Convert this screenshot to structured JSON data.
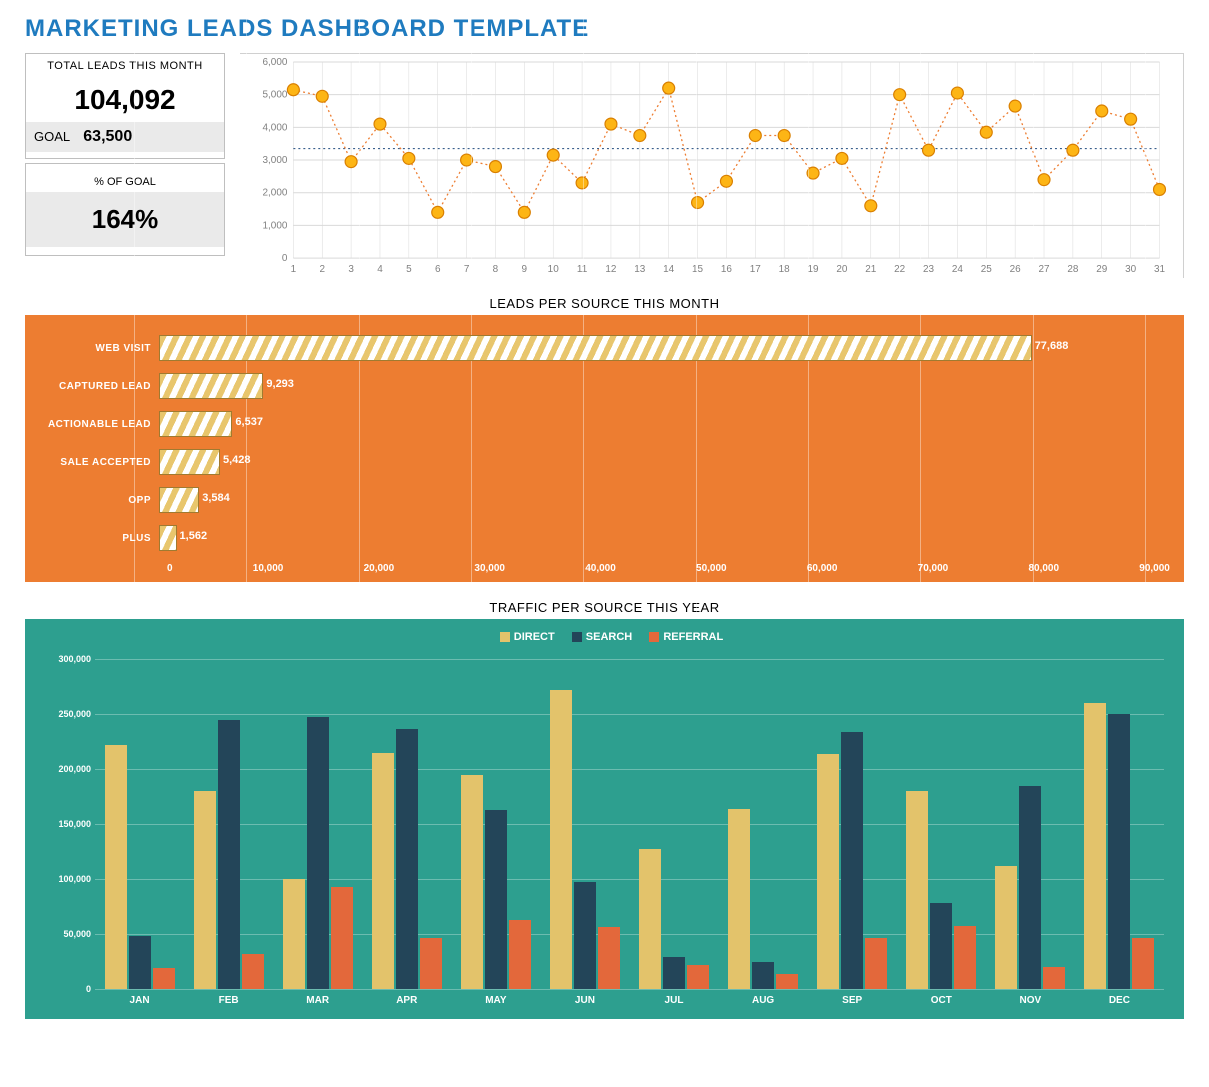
{
  "title": "MARKETING LEADS DASHBOARD TEMPLATE",
  "colors": {
    "title": "#1f7bbf",
    "hbar_panel_bg": "#ed7d31",
    "grouped_panel_bg": "#2d9f8f",
    "direct": "#e3c36b",
    "search": "#234559",
    "referral": "#e3683b",
    "line_marker_fill": "#fdb515",
    "line_marker_stroke": "#d97f00",
    "line_stroke": "#ed7d31",
    "trend_line": "#1f497d"
  },
  "kpi": {
    "total_label": "TOTAL LEADS THIS MONTH",
    "total_value": "104,092",
    "goal_label": "GOAL",
    "goal_value": "63,500",
    "pct_label": "% OF GOAL",
    "pct_value": "164%"
  },
  "line_chart": {
    "type": "line",
    "x_categories": [
      "1",
      "2",
      "3",
      "4",
      "5",
      "6",
      "7",
      "8",
      "9",
      "10",
      "11",
      "12",
      "13",
      "14",
      "15",
      "16",
      "17",
      "18",
      "19",
      "20",
      "21",
      "22",
      "23",
      "24",
      "25",
      "26",
      "27",
      "28",
      "29",
      "30",
      "31"
    ],
    "values": [
      5150,
      4950,
      2950,
      4100,
      3050,
      1400,
      3000,
      2800,
      1400,
      3150,
      2300,
      4100,
      3750,
      5200,
      1700,
      2350,
      3750,
      3750,
      2600,
      3050,
      1600,
      5000,
      3300,
      5050,
      3850,
      4650,
      2400,
      3300,
      4500,
      4250,
      2100
    ],
    "ylim": [
      0,
      6000
    ],
    "ytick_step": 1000,
    "trend_y": 3350,
    "marker_radius": 6,
    "axis_color": "#808080",
    "grid_color": "#d9d9d9",
    "label_fontsize": 10
  },
  "hbar": {
    "title": "LEADS PER SOURCE THIS MONTH",
    "xlim": [
      0,
      90000
    ],
    "xtick_step": 10000,
    "categories": [
      "WEB VISIT",
      "CAPTURED LEAD",
      "ACTIONABLE LEAD",
      "SALE ACCEPTED",
      "OPP",
      "PLUS"
    ],
    "values": [
      77688,
      9293,
      6537,
      5428,
      3584,
      1562
    ],
    "value_labels": [
      "77,688",
      "9,293",
      "6,537",
      "5,428",
      "3,584",
      "1,562"
    ],
    "axis_labels": [
      "0",
      "10,000",
      "20,000",
      "30,000",
      "40,000",
      "50,000",
      "60,000",
      "70,000",
      "80,000",
      "90,000"
    ]
  },
  "grouped": {
    "title": "TRAFFIC PER SOURCE THIS YEAR",
    "legend": {
      "direct": "DIRECT",
      "search": "SEARCH",
      "referral": "REFERRAL"
    },
    "ylim": [
      0,
      300000
    ],
    "ytick_step": 50000,
    "ytick_labels": [
      "0",
      "50,000",
      "100,000",
      "150,000",
      "200,000",
      "250,000",
      "300,000"
    ],
    "months": [
      "JAN",
      "FEB",
      "MAR",
      "APR",
      "MAY",
      "JUN",
      "JUL",
      "AUG",
      "SEP",
      "OCT",
      "NOV",
      "DEC"
    ],
    "direct": [
      222000,
      180000,
      100000,
      215000,
      195000,
      272000,
      127000,
      164000,
      214000,
      180000,
      112000,
      260000
    ],
    "search": [
      48000,
      245000,
      247000,
      236000,
      163000,
      97000,
      29000,
      25000,
      234000,
      78000,
      185000,
      250000
    ],
    "referral": [
      19000,
      32000,
      93000,
      46000,
      63000,
      56000,
      22000,
      14000,
      46000,
      57000,
      20000,
      46000
    ]
  }
}
